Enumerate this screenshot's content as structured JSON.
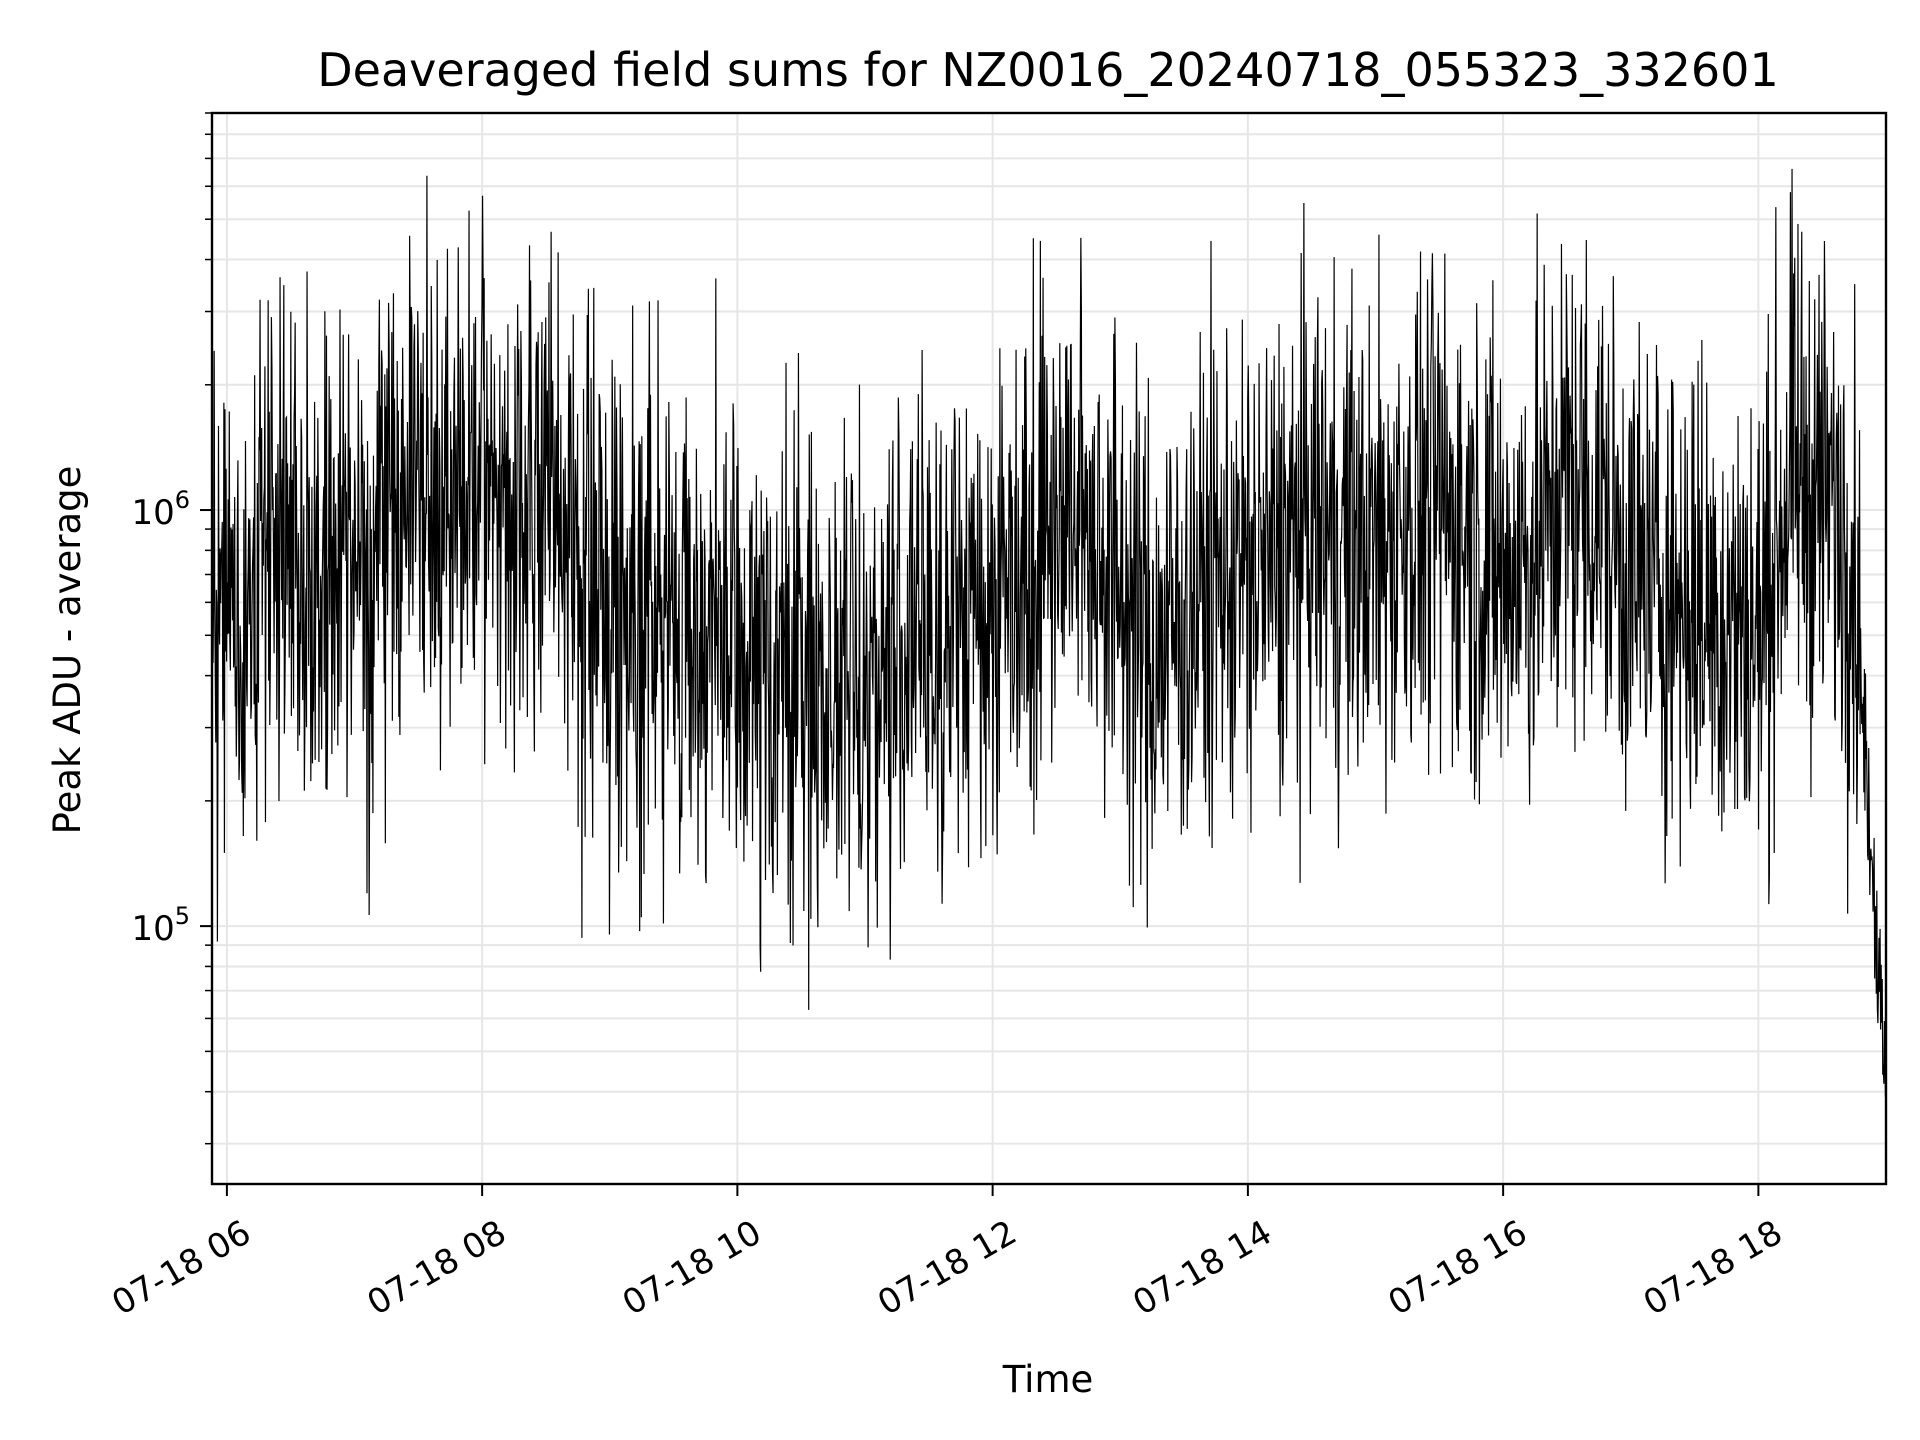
{
  "chart_data": {
    "type": "line",
    "title": "Deaveraged field sums for NZ0016_20240718_055323_332601",
    "xlabel": "Time",
    "ylabel": "Peak ADU - average",
    "yscale": "log",
    "grid": true,
    "legend": "none",
    "xlim": [
      "07-18 05:53",
      "07-18 19:00"
    ],
    "ylim": [
      24000,
      9000000
    ],
    "x_ticks": [
      "07-18 06",
      "07-18 08",
      "07-18 10",
      "07-18 12",
      "07-18 14",
      "07-18 16",
      "07-18 18"
    ],
    "y_ticks": [
      {
        "value": 100000,
        "base": "10",
        "exp": "5"
      },
      {
        "value": 1000000,
        "base": "10",
        "exp": "6"
      }
    ],
    "line_color": "#000000",
    "grid_color": "#e6e6e6",
    "series": [
      {
        "x": [
          "07-18 05:53",
          "07-18 06:00",
          "07-18 06:15",
          "07-18 06:30",
          "07-18 06:45",
          "07-18 07:00",
          "07-18 07:15",
          "07-18 07:30",
          "07-18 07:45",
          "07-18 08:00",
          "07-18 08:15",
          "07-18 08:30",
          "07-18 08:45",
          "07-18 09:00",
          "07-18 09:15",
          "07-18 09:30",
          "07-18 09:45",
          "07-18 10:00",
          "07-18 10:15",
          "07-18 10:30",
          "07-18 10:45",
          "07-18 11:00",
          "07-18 11:15",
          "07-18 11:30",
          "07-18 11:45",
          "07-18 12:00",
          "07-18 12:15",
          "07-18 12:30",
          "07-18 12:45",
          "07-18 13:00",
          "07-18 13:15",
          "07-18 13:30",
          "07-18 13:45",
          "07-18 14:00",
          "07-18 14:15",
          "07-18 14:30",
          "07-18 14:45",
          "07-18 15:00",
          "07-18 15:15",
          "07-18 15:30",
          "07-18 15:45",
          "07-18 16:00",
          "07-18 16:15",
          "07-18 16:30",
          "07-18 16:45",
          "07-18 17:00",
          "07-18 17:15",
          "07-18 17:30",
          "07-18 17:45",
          "07-18 18:00",
          "07-18 18:15",
          "07-18 18:30",
          "07-18 18:45",
          "07-18 19:00"
        ],
        "y": [
          550000,
          600000,
          750000,
          900000,
          850000,
          700000,
          950000,
          1200000,
          1100000,
          1100000,
          1000000,
          1050000,
          800000,
          600000,
          650000,
          500000,
          550000,
          400000,
          420000,
          380000,
          400000,
          380000,
          450000,
          500000,
          550000,
          600000,
          800000,
          1000000,
          950000,
          650000,
          450000,
          550000,
          700000,
          700000,
          750000,
          900000,
          850000,
          800000,
          950000,
          1000000,
          900000,
          700000,
          800000,
          1200000,
          1000000,
          700000,
          650000,
          600000,
          550000,
          500000,
          1200000,
          1100000,
          800000,
          40000
        ]
      }
    ]
  }
}
